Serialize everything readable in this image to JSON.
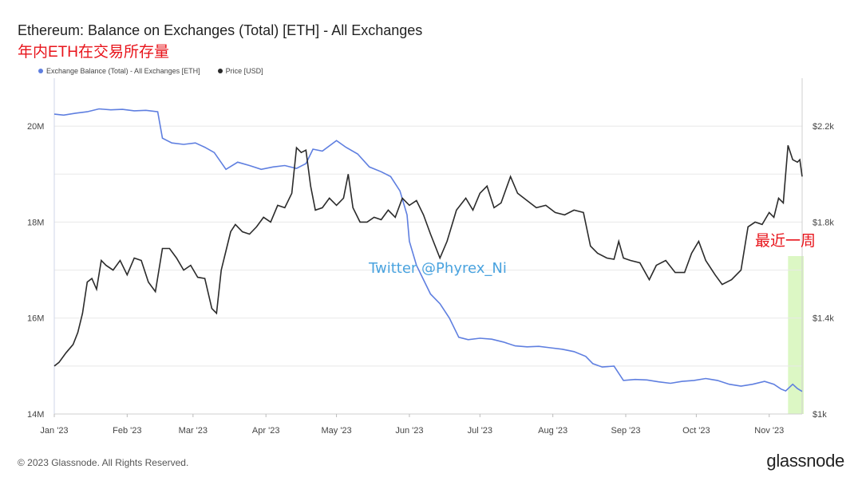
{
  "header": {
    "title": "Ethereum: Balance on Exchanges (Total) [ETH] - All Exchanges",
    "subtitle": "年内ETH在交易所存量"
  },
  "footer": {
    "copyright": "© 2023 Glassnode. All Rights Reserved.",
    "logo": "glassnode"
  },
  "colors": {
    "balance": "#5f7fe0",
    "price": "#2b2b2b",
    "annotation": "#e8141b",
    "highlight": "#dcf7c4",
    "watermark": "#4aa3df",
    "grid": "#e8e8e8"
  },
  "chart_data": {
    "type": "line",
    "title": "Ethereum: Balance on Exchanges (Total) [ETH] - All Exchanges",
    "x_ticks": [
      "Jan '23",
      "Feb '23",
      "Mar '23",
      "Apr '23",
      "May '23",
      "Jun '23",
      "Jul '23",
      "Aug '23",
      "Sep '23",
      "Oct '23",
      "Nov '23"
    ],
    "x_range": [
      "2023-01-01",
      "2023-11-15"
    ],
    "y_left": {
      "ticks": [
        "14M",
        "16M",
        "18M",
        "20M"
      ],
      "tick_values": [
        14000000,
        16000000,
        18000000,
        20000000
      ],
      "range": [
        14000000,
        21000000
      ]
    },
    "y_right": {
      "ticks": [
        "$1k",
        "$1.4k",
        "$1.8k",
        "$2.2k"
      ],
      "tick_values": [
        1000,
        1400,
        1800,
        2200
      ],
      "range": [
        1000,
        2400
      ]
    },
    "grid": true,
    "legend_position": "top-left",
    "series": [
      {
        "name": "Exchange Balance (Total) - All Exchanges [ETH]",
        "axis": "left",
        "points": [
          [
            "2023-01-01",
            20250000
          ],
          [
            "2023-01-05",
            20230000
          ],
          [
            "2023-01-10",
            20270000
          ],
          [
            "2023-01-15",
            20300000
          ],
          [
            "2023-01-20",
            20360000
          ],
          [
            "2023-01-25",
            20340000
          ],
          [
            "2023-01-30",
            20350000
          ],
          [
            "2023-02-04",
            20320000
          ],
          [
            "2023-02-09",
            20330000
          ],
          [
            "2023-02-14",
            20300000
          ],
          [
            "2023-02-16",
            19750000
          ],
          [
            "2023-02-20",
            19650000
          ],
          [
            "2023-02-25",
            19620000
          ],
          [
            "2023-03-02",
            19650000
          ],
          [
            "2023-03-06",
            19560000
          ],
          [
            "2023-03-10",
            19450000
          ],
          [
            "2023-03-15",
            19100000
          ],
          [
            "2023-03-20",
            19250000
          ],
          [
            "2023-03-25",
            19180000
          ],
          [
            "2023-03-30",
            19100000
          ],
          [
            "2023-04-04",
            19150000
          ],
          [
            "2023-04-09",
            19180000
          ],
          [
            "2023-04-14",
            19120000
          ],
          [
            "2023-04-18",
            19220000
          ],
          [
            "2023-04-21",
            19520000
          ],
          [
            "2023-04-25",
            19480000
          ],
          [
            "2023-05-01",
            19700000
          ],
          [
            "2023-05-05",
            19560000
          ],
          [
            "2023-05-10",
            19420000
          ],
          [
            "2023-05-15",
            19150000
          ],
          [
            "2023-05-20",
            19050000
          ],
          [
            "2023-05-24",
            18950000
          ],
          [
            "2023-05-28",
            18650000
          ],
          [
            "2023-05-31",
            18150000
          ],
          [
            "2023-06-01",
            17600000
          ],
          [
            "2023-06-04",
            17100000
          ],
          [
            "2023-06-07",
            16800000
          ],
          [
            "2023-06-10",
            16500000
          ],
          [
            "2023-06-14",
            16300000
          ],
          [
            "2023-06-18",
            16000000
          ],
          [
            "2023-06-22",
            15600000
          ],
          [
            "2023-06-26",
            15550000
          ],
          [
            "2023-07-01",
            15580000
          ],
          [
            "2023-07-06",
            15560000
          ],
          [
            "2023-07-11",
            15500000
          ],
          [
            "2023-07-16",
            15420000
          ],
          [
            "2023-07-21",
            15400000
          ],
          [
            "2023-07-26",
            15410000
          ],
          [
            "2023-07-31",
            15380000
          ],
          [
            "2023-08-05",
            15350000
          ],
          [
            "2023-08-10",
            15300000
          ],
          [
            "2023-08-15",
            15200000
          ],
          [
            "2023-08-18",
            15050000
          ],
          [
            "2023-08-22",
            14980000
          ],
          [
            "2023-08-27",
            15000000
          ],
          [
            "2023-08-31",
            14700000
          ],
          [
            "2023-09-05",
            14720000
          ],
          [
            "2023-09-10",
            14710000
          ],
          [
            "2023-09-15",
            14670000
          ],
          [
            "2023-09-20",
            14640000
          ],
          [
            "2023-09-25",
            14680000
          ],
          [
            "2023-09-30",
            14700000
          ],
          [
            "2023-10-05",
            14740000
          ],
          [
            "2023-10-10",
            14700000
          ],
          [
            "2023-10-15",
            14620000
          ],
          [
            "2023-10-20",
            14580000
          ],
          [
            "2023-10-25",
            14620000
          ],
          [
            "2023-10-30",
            14680000
          ],
          [
            "2023-11-03",
            14620000
          ],
          [
            "2023-11-06",
            14520000
          ],
          [
            "2023-11-08",
            14480000
          ],
          [
            "2023-11-11",
            14620000
          ],
          [
            "2023-11-13",
            14530000
          ],
          [
            "2023-11-15",
            14470000
          ]
        ]
      },
      {
        "name": "Price [USD]",
        "axis": "right",
        "points": [
          [
            "2023-01-01",
            1200
          ],
          [
            "2023-01-03",
            1215
          ],
          [
            "2023-01-06",
            1255
          ],
          [
            "2023-01-09",
            1290
          ],
          [
            "2023-01-11",
            1340
          ],
          [
            "2023-01-13",
            1420
          ],
          [
            "2023-01-15",
            1550
          ],
          [
            "2023-01-17",
            1565
          ],
          [
            "2023-01-19",
            1520
          ],
          [
            "2023-01-21",
            1640
          ],
          [
            "2023-01-23",
            1620
          ],
          [
            "2023-01-26",
            1600
          ],
          [
            "2023-01-29",
            1640
          ],
          [
            "2023-02-01",
            1580
          ],
          [
            "2023-02-04",
            1650
          ],
          [
            "2023-02-07",
            1640
          ],
          [
            "2023-02-10",
            1550
          ],
          [
            "2023-02-13",
            1510
          ],
          [
            "2023-02-16",
            1690
          ],
          [
            "2023-02-19",
            1690
          ],
          [
            "2023-02-22",
            1650
          ],
          [
            "2023-02-25",
            1600
          ],
          [
            "2023-02-28",
            1620
          ],
          [
            "2023-03-03",
            1570
          ],
          [
            "2023-03-06",
            1565
          ],
          [
            "2023-03-09",
            1440
          ],
          [
            "2023-03-11",
            1420
          ],
          [
            "2023-03-13",
            1600
          ],
          [
            "2023-03-15",
            1680
          ],
          [
            "2023-03-17",
            1760
          ],
          [
            "2023-03-19",
            1790
          ],
          [
            "2023-03-22",
            1760
          ],
          [
            "2023-03-25",
            1750
          ],
          [
            "2023-03-28",
            1780
          ],
          [
            "2023-03-31",
            1820
          ],
          [
            "2023-04-03",
            1800
          ],
          [
            "2023-04-06",
            1870
          ],
          [
            "2023-04-09",
            1860
          ],
          [
            "2023-04-12",
            1920
          ],
          [
            "2023-04-14",
            2110
          ],
          [
            "2023-04-16",
            2090
          ],
          [
            "2023-04-18",
            2100
          ],
          [
            "2023-04-20",
            1950
          ],
          [
            "2023-04-22",
            1850
          ],
          [
            "2023-04-25",
            1860
          ],
          [
            "2023-04-28",
            1900
          ],
          [
            "2023-05-01",
            1870
          ],
          [
            "2023-05-04",
            1900
          ],
          [
            "2023-05-06",
            2000
          ],
          [
            "2023-05-08",
            1860
          ],
          [
            "2023-05-11",
            1800
          ],
          [
            "2023-05-14",
            1800
          ],
          [
            "2023-05-17",
            1820
          ],
          [
            "2023-05-20",
            1810
          ],
          [
            "2023-05-23",
            1850
          ],
          [
            "2023-05-26",
            1820
          ],
          [
            "2023-05-29",
            1900
          ],
          [
            "2023-06-01",
            1870
          ],
          [
            "2023-06-04",
            1890
          ],
          [
            "2023-06-07",
            1830
          ],
          [
            "2023-06-10",
            1750
          ],
          [
            "2023-06-14",
            1650
          ],
          [
            "2023-06-17",
            1720
          ],
          [
            "2023-06-21",
            1850
          ],
          [
            "2023-06-25",
            1900
          ],
          [
            "2023-06-28",
            1850
          ],
          [
            "2023-07-01",
            1920
          ],
          [
            "2023-07-04",
            1950
          ],
          [
            "2023-07-07",
            1860
          ],
          [
            "2023-07-10",
            1880
          ],
          [
            "2023-07-14",
            1990
          ],
          [
            "2023-07-17",
            1920
          ],
          [
            "2023-07-21",
            1890
          ],
          [
            "2023-07-25",
            1860
          ],
          [
            "2023-07-29",
            1870
          ],
          [
            "2023-08-02",
            1840
          ],
          [
            "2023-08-06",
            1830
          ],
          [
            "2023-08-10",
            1850
          ],
          [
            "2023-08-14",
            1840
          ],
          [
            "2023-08-17",
            1700
          ],
          [
            "2023-08-20",
            1670
          ],
          [
            "2023-08-24",
            1650
          ],
          [
            "2023-08-27",
            1645
          ],
          [
            "2023-08-29",
            1720
          ],
          [
            "2023-08-31",
            1650
          ],
          [
            "2023-09-03",
            1640
          ],
          [
            "2023-09-07",
            1630
          ],
          [
            "2023-09-11",
            1560
          ],
          [
            "2023-09-14",
            1620
          ],
          [
            "2023-09-18",
            1640
          ],
          [
            "2023-09-22",
            1590
          ],
          [
            "2023-09-26",
            1590
          ],
          [
            "2023-09-29",
            1670
          ],
          [
            "2023-10-02",
            1720
          ],
          [
            "2023-10-05",
            1640
          ],
          [
            "2023-10-09",
            1580
          ],
          [
            "2023-10-12",
            1540
          ],
          [
            "2023-10-16",
            1560
          ],
          [
            "2023-10-20",
            1600
          ],
          [
            "2023-10-23",
            1780
          ],
          [
            "2023-10-26",
            1800
          ],
          [
            "2023-10-29",
            1790
          ],
          [
            "2023-11-01",
            1840
          ],
          [
            "2023-11-03",
            1820
          ],
          [
            "2023-11-05",
            1900
          ],
          [
            "2023-11-07",
            1880
          ],
          [
            "2023-11-09",
            2120
          ],
          [
            "2023-11-11",
            2060
          ],
          [
            "2023-11-13",
            2050
          ],
          [
            "2023-11-14",
            2060
          ],
          [
            "2023-11-15",
            1990
          ]
        ]
      }
    ],
    "annotations": {
      "highlight_label": "最近一周",
      "highlight_range": [
        "2023-11-09",
        "2023-11-15"
      ],
      "watermark": "Twitter @Phyrex_Ni"
    }
  }
}
